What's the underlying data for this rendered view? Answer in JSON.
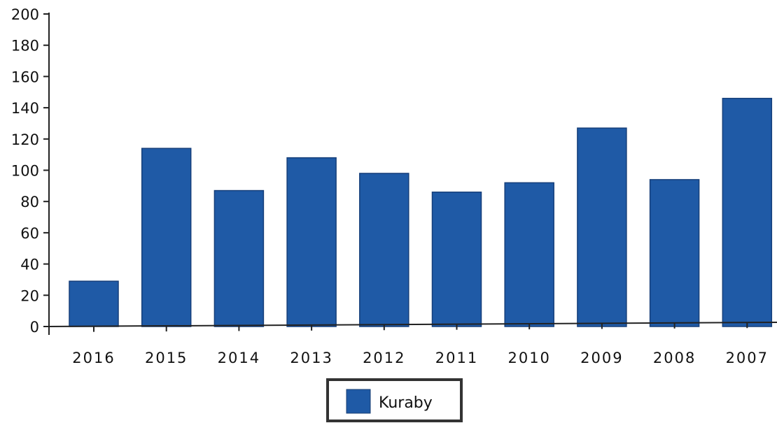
{
  "chart_data": {
    "type": "bar",
    "categories": [
      "2016",
      "2015",
      "2014",
      "2013",
      "2012",
      "2011",
      "2010",
      "2009",
      "2008",
      "2007"
    ],
    "series": [
      {
        "name": "Kuraby",
        "values": [
          29,
          114,
          87,
          108,
          98,
          86,
          92,
          127,
          94,
          146
        ],
        "color": "#1f5aa6"
      }
    ],
    "ylim": [
      0,
      200
    ],
    "yticks": [
      "0",
      "20",
      "40",
      "60",
      "80",
      "100",
      "120",
      "140",
      "160",
      "180",
      "200"
    ],
    "grid": false,
    "legend_position": "bottom-center"
  }
}
